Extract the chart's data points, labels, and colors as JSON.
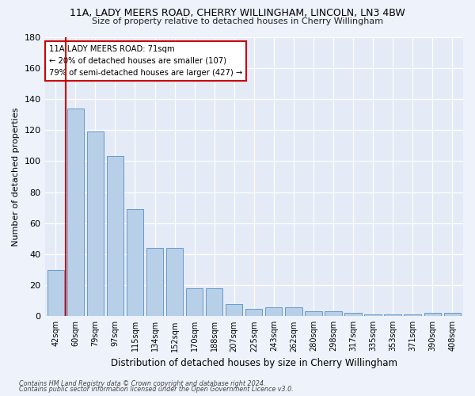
{
  "title1": "11A, LADY MEERS ROAD, CHERRY WILLINGHAM, LINCOLN, LN3 4BW",
  "title2": "Size of property relative to detached houses in Cherry Willingham",
  "xlabel": "Distribution of detached houses by size in Cherry Willingham",
  "ylabel": "Number of detached properties",
  "categories": [
    "42sqm",
    "60sqm",
    "79sqm",
    "97sqm",
    "115sqm",
    "134sqm",
    "152sqm",
    "170sqm",
    "188sqm",
    "207sqm",
    "225sqm",
    "243sqm",
    "262sqm",
    "280sqm",
    "298sqm",
    "317sqm",
    "335sqm",
    "353sqm",
    "371sqm",
    "390sqm",
    "408sqm"
  ],
  "values": [
    30,
    134,
    119,
    103,
    69,
    44,
    44,
    18,
    18,
    8,
    5,
    6,
    6,
    3,
    3,
    2,
    1,
    1,
    1,
    2,
    2
  ],
  "bar_color": "#b8cfe8",
  "bar_edge_color": "#6699cc",
  "ylim": [
    0,
    180
  ],
  "yticks": [
    0,
    20,
    40,
    60,
    80,
    100,
    120,
    140,
    160,
    180
  ],
  "vline_x_index": 1,
  "vline_color": "#cc0000",
  "annotation_lines": [
    "11A LADY MEERS ROAD: 71sqm",
    "← 20% of detached houses are smaller (107)",
    "79% of semi-detached houses are larger (427) →"
  ],
  "footer1": "Contains HM Land Registry data © Crown copyright and database right 2024.",
  "footer2": "Contains public sector information licensed under the Open Government Licence v3.0.",
  "bg_color": "#edf2fb",
  "plot_bg_color": "#e4eaf6"
}
